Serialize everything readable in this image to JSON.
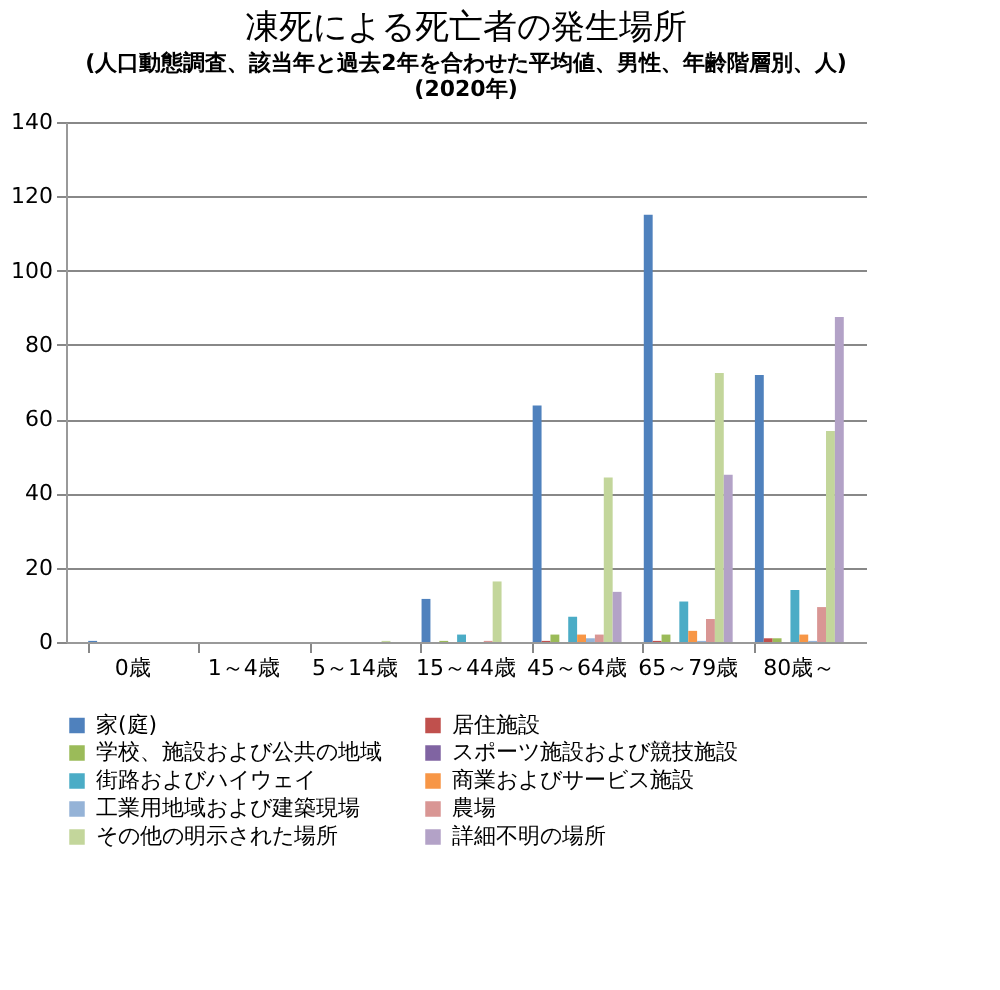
{
  "chart_data": {
    "type": "bar",
    "title": "凍死による死亡者の発生場所",
    "subtitle": [
      "(人口動態調査、該当年と過去2年を合わせた平均値、男性、年齢階層別、人)",
      "(2020年)"
    ],
    "categories": [
      "0歳",
      "1～4歳",
      "5～14歳",
      "15～44歳",
      "45～64歳",
      "65～79歳",
      "80歳～"
    ],
    "series": [
      {
        "name": "家(庭)",
        "color": "#4f81bd",
        "values": [
          0.3,
          0,
          0,
          11.6,
          63.7,
          115,
          71.9
        ]
      },
      {
        "name": "居住施設",
        "color": "#c0504d",
        "values": [
          0,
          0,
          0,
          0,
          0.3,
          0.3,
          1
        ]
      },
      {
        "name": "学校、施設および公共の地域",
        "color": "#9bbb59",
        "values": [
          0,
          0,
          0,
          0.3,
          2,
          2,
          1
        ]
      },
      {
        "name": "スポーツ施設および競技施設",
        "color": "#8064a2",
        "values": [
          0,
          0,
          0,
          0,
          null,
          null,
          null
        ]
      },
      {
        "name": "街路およびハイウェイ",
        "color": "#4bacc6",
        "values": [
          0,
          0,
          0,
          2,
          6.8,
          10.9,
          14
        ]
      },
      {
        "name": "商業およびサービス施設",
        "color": "#f79646",
        "values": [
          0,
          0,
          0,
          0,
          2,
          3,
          2
        ]
      },
      {
        "name": "工業用地域および建築現場",
        "color": "#95b3d7",
        "values": [
          0,
          0,
          0,
          0,
          1,
          0.3,
          0.3
        ]
      },
      {
        "name": "農場",
        "color": "#d99694",
        "values": [
          0,
          0,
          0,
          0.3,
          2,
          6.2,
          9.4
        ]
      },
      {
        "name": "その他の明示された場所",
        "color": "#c3d69b",
        "values": [
          0,
          0,
          0.3,
          16.3,
          44.3,
          72.4,
          56.8
        ]
      },
      {
        "name": "詳細不明の場所",
        "color": "#b3a2c7",
        "values": [
          0,
          0,
          0,
          null,
          13.5,
          45,
          87.5
        ]
      }
    ],
    "ylim": [
      0,
      140
    ],
    "yticks": [
      0,
      20,
      40,
      60,
      80,
      100,
      120,
      140
    ],
    "grid": "y",
    "legend": "bottom"
  }
}
